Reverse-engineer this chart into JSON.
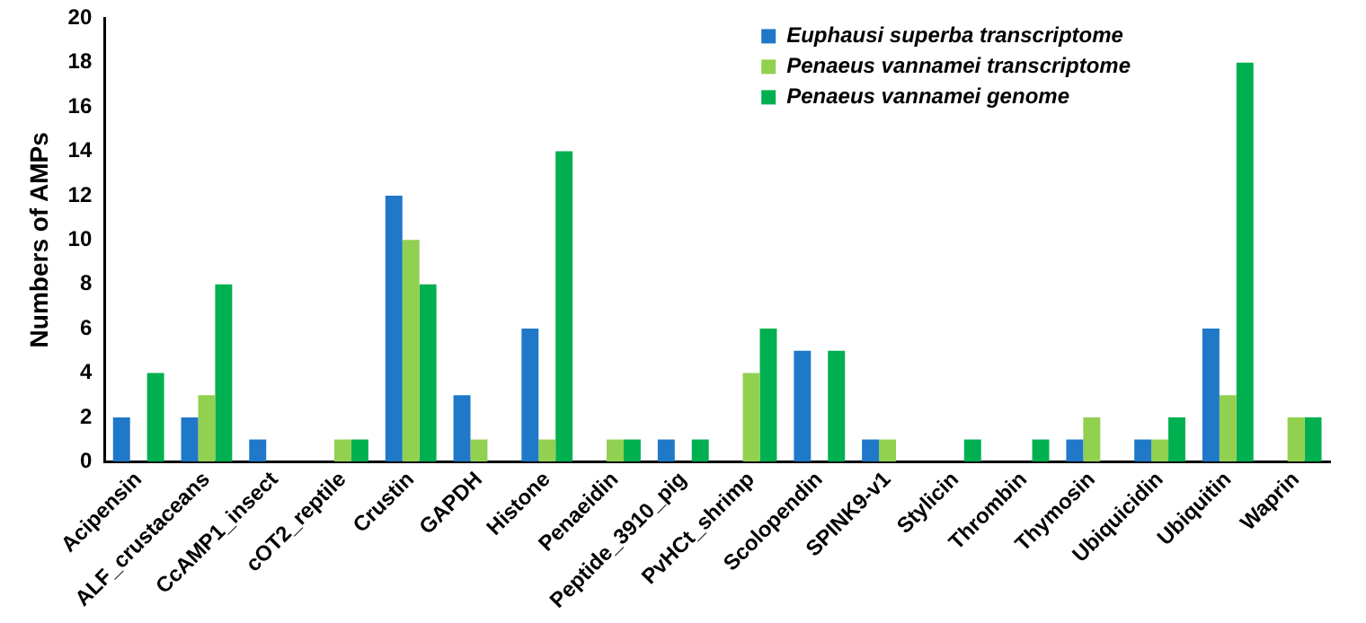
{
  "chart_data": {
    "type": "bar",
    "ylabel": "Numbers of AMPs",
    "categories": [
      "Acipensin",
      "ALF_crustaceans",
      "CcAMP1_insect",
      "cOT2_reptile",
      "Crustin",
      "GAPDH",
      "Histone",
      "Penaeidin",
      "Peptide_3910_pig",
      "PvHCt_shrimp",
      "Scolopendin",
      "SPINK9-v1",
      "Stylicin",
      "Thrombin",
      "Thymosin",
      "Ubiquicidin",
      "Ubiquitin",
      "Waprin"
    ],
    "series": [
      {
        "name": "Euphausi superba transcriptome",
        "color": "#1f78c8",
        "values": [
          2,
          2,
          1,
          0,
          12,
          3,
          6,
          0,
          1,
          0,
          5,
          1,
          0,
          0,
          1,
          1,
          6,
          0
        ]
      },
      {
        "name": "Penaeus vannamei transcriptome",
        "color": "#92d050",
        "values": [
          0,
          3,
          0,
          1,
          10,
          1,
          1,
          1,
          0,
          4,
          0,
          1,
          0,
          0,
          2,
          1,
          3,
          2
        ]
      },
      {
        "name": "Penaeus vannamei genome",
        "color": "#00b050",
        "values": [
          4,
          8,
          0,
          1,
          8,
          0,
          14,
          1,
          1,
          6,
          5,
          0,
          1,
          1,
          0,
          2,
          18,
          2
        ]
      }
    ],
    "ylim": [
      0,
      20
    ],
    "yticks": [
      0,
      2,
      4,
      6,
      8,
      10,
      12,
      14,
      16,
      18,
      20
    ],
    "grid": false,
    "legend": "top right"
  }
}
